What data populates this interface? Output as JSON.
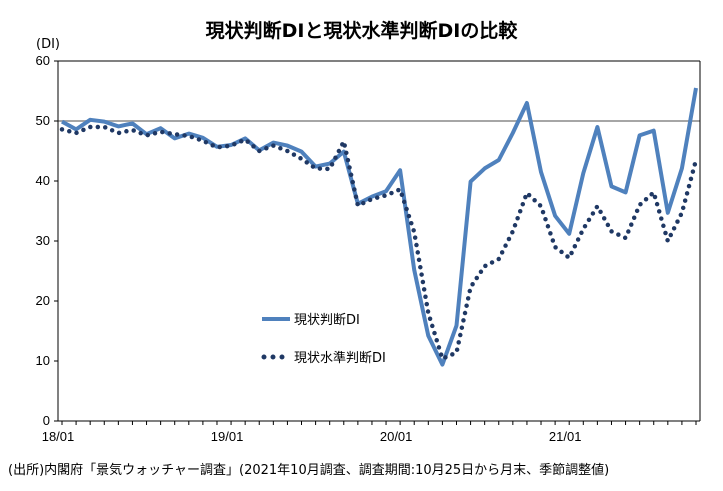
{
  "chart_data": {
    "type": "line",
    "title": "現状判断DIと現状水準判断DIの比較",
    "ylabel": "(DI)",
    "ylim": [
      0,
      60
    ],
    "yticks": [
      0,
      10,
      20,
      30,
      40,
      50,
      60
    ],
    "xtick_labels": [
      "18/01",
      "19/01",
      "20/01",
      "21/01"
    ],
    "reference_line": 50,
    "colors": {
      "series1": "#4f81bd",
      "series2": "#1f3864",
      "reference": "#a6a6a6"
    },
    "legend_position": "center-left",
    "x": [
      "18/01",
      "18/02",
      "18/03",
      "18/04",
      "18/05",
      "18/06",
      "18/07",
      "18/08",
      "18/09",
      "18/10",
      "18/11",
      "18/12",
      "19/01",
      "19/02",
      "19/03",
      "19/04",
      "19/05",
      "19/06",
      "19/07",
      "19/08",
      "19/09",
      "19/10",
      "19/11",
      "19/12",
      "20/01",
      "20/02",
      "20/03",
      "20/04",
      "20/05",
      "20/06",
      "20/07",
      "20/08",
      "20/09",
      "20/10",
      "20/11",
      "20/12",
      "21/01",
      "21/02",
      "21/03",
      "21/04",
      "21/05",
      "21/06",
      "21/07",
      "21/08",
      "21/09",
      "21/10"
    ],
    "series": [
      {
        "name": "現状判断DI",
        "style": "solid",
        "values": [
          49.9,
          48.6,
          50.2,
          49.9,
          49.1,
          49.6,
          47.8,
          48.8,
          47.1,
          47.9,
          47.2,
          45.7,
          46.0,
          47.1,
          45.1,
          46.4,
          45.9,
          44.9,
          42.4,
          42.9,
          44.9,
          36.2,
          37.4,
          38.3,
          41.8,
          25.2,
          14.2,
          9.4,
          15.9,
          39.9,
          42.1,
          43.5,
          48.0,
          53.0,
          41.5,
          34.2,
          31.2,
          41.3,
          49.0,
          39.1,
          38.1,
          47.6,
          48.4,
          34.7,
          42.1,
          55.5
        ]
      },
      {
        "name": "現状水準判断DI",
        "style": "dotted",
        "values": [
          48.6,
          48.0,
          49.0,
          49.0,
          48.0,
          48.5,
          47.6,
          48.2,
          47.8,
          47.5,
          46.7,
          45.6,
          45.9,
          46.9,
          45.0,
          45.9,
          45.0,
          43.7,
          42.1,
          42.0,
          46.6,
          35.9,
          37.0,
          37.6,
          38.6,
          31.5,
          18.0,
          10.4,
          11.4,
          22.3,
          25.8,
          27.0,
          31.6,
          38.0,
          35.8,
          29.0,
          27.2,
          32.0,
          35.8,
          31.6,
          30.5,
          36.0,
          38.1,
          30.0,
          34.7,
          43.5
        ]
      }
    ]
  },
  "page": {
    "title": "現状判断DIと現状水準判断DIの比較",
    "unit": "(DI)",
    "source": "(出所)内閣府「景気ウォッチャー調査」(2021年10月調査、調査期間:10月25日から月末、季節調整値)"
  }
}
